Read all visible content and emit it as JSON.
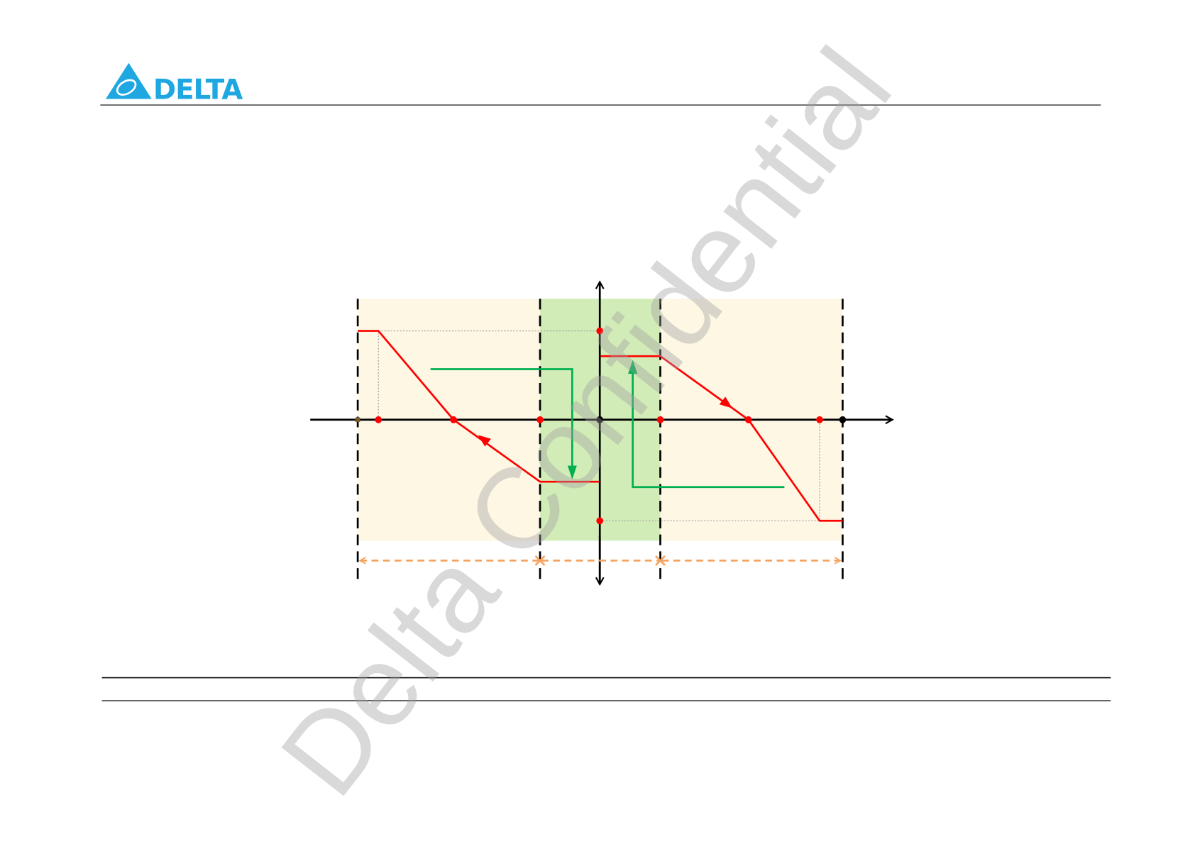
{
  "header": {
    "logo_text": "DELTA",
    "logo_color": "#1ea7e1"
  },
  "watermark": {
    "text": "Delta Confidential",
    "color": "#b0b0b0"
  },
  "diagram": {
    "colors": {
      "curve": "#ff0000",
      "transition": "#00b050",
      "outer_region": "#fdf7e4",
      "center_region": "#d2ecb8",
      "span_marker": "#f4a460",
      "axis": "#000000"
    }
  }
}
